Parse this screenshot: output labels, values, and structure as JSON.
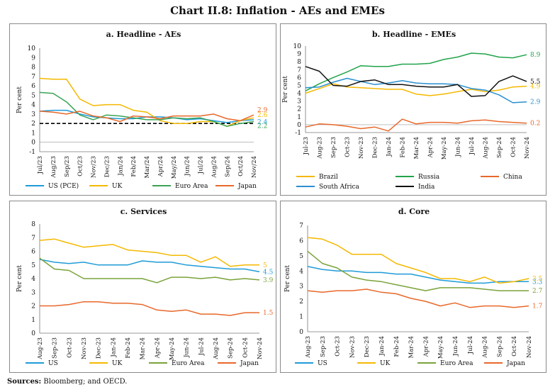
{
  "page": {
    "title": "Chart II.8: Inflation - AEs and EMEs",
    "sources_label": "Sources:",
    "sources_text": "Bloomberg; and OECD."
  },
  "colors": {
    "blue": "#1f9bd7",
    "yellow": "#f5b800",
    "green": "#3aa356",
    "orange": "#e8682a",
    "black": "#111111",
    "chartb_green": "#22a34a",
    "chartb_blue": "#2a8fd0",
    "chartc_green": "#7aa33a"
  },
  "chart_data": [
    {
      "id": "a",
      "type": "line",
      "title": "a. Headline - AEs",
      "ylabel": "Per cent",
      "ylim": [
        -1,
        10
      ],
      "yticks": [
        "-1",
        "0",
        "1",
        "2",
        "3",
        "4",
        "5",
        "6",
        "7",
        "8",
        "9",
        "10"
      ],
      "x": [
        "Jul/23",
        "Aug/23",
        "Sep/23",
        "Oct/23",
        "Nov/23",
        "Dec/23",
        "Jan/24",
        "Feb/24",
        "Mar/24",
        "Apr/24",
        "May/24",
        "Jun/24",
        "Jul/24",
        "Aug/24",
        "Sep/24",
        "Oct/24",
        "Nov/24"
      ],
      "reference_line": 2,
      "series": [
        {
          "name": "US (PCE)",
          "color": "blue",
          "values": [
            3.3,
            3.4,
            3.4,
            3.0,
            2.7,
            2.6,
            2.5,
            2.5,
            2.7,
            2.7,
            2.6,
            2.4,
            2.5,
            2.3,
            2.1,
            2.3,
            2.4
          ],
          "end_label": "2.4"
        },
        {
          "name": "UK",
          "color": "yellow",
          "values": [
            6.8,
            6.7,
            6.7,
            4.6,
            3.9,
            4.0,
            4.0,
            3.4,
            3.2,
            2.3,
            2.0,
            2.0,
            2.2,
            2.2,
            1.7,
            2.3,
            2.6
          ],
          "end_label": "2.6"
        },
        {
          "name": "Euro Area",
          "color": "green",
          "values": [
            5.3,
            5.2,
            4.3,
            2.9,
            2.4,
            2.9,
            2.8,
            2.6,
            2.4,
            2.4,
            2.6,
            2.5,
            2.6,
            2.2,
            1.7,
            2.0,
            2.2
          ],
          "end_label": "2.2"
        },
        {
          "name": "Japan",
          "color": "orange",
          "values": [
            3.3,
            3.2,
            3.0,
            3.3,
            2.8,
            2.6,
            2.2,
            2.8,
            2.7,
            2.5,
            2.8,
            2.8,
            2.8,
            3.0,
            2.5,
            2.3,
            2.9
          ],
          "end_label": "2.9"
        }
      ]
    },
    {
      "id": "b",
      "type": "line",
      "title": "b. Headline - EMEs",
      "ylabel": "Per cent",
      "ylim": [
        -1,
        10
      ],
      "yticks": [
        "-1",
        "0",
        "1",
        "2",
        "3",
        "4",
        "5",
        "6",
        "7",
        "8",
        "9",
        "10"
      ],
      "x": [
        "Jul-23",
        "Aug-23",
        "Sep-23",
        "Oct-23",
        "Nov-23",
        "Dec-23",
        "Jan-24",
        "Feb-24",
        "Mar-24",
        "Apr-24",
        "May-24",
        "Jun-24",
        "Jul-24",
        "Aug-24",
        "Sep-24",
        "Oct-24",
        "Nov-24"
      ],
      "series": [
        {
          "name": "Brazil",
          "color": "yellow",
          "values": [
            4.0,
            4.6,
            5.2,
            4.8,
            4.7,
            4.6,
            4.5,
            4.5,
            3.9,
            3.7,
            3.9,
            4.2,
            4.5,
            4.2,
            4.4,
            4.8,
            4.9
          ],
          "end_label": "4.9"
        },
        {
          "name": "Russia",
          "color": "chartb_green",
          "values": [
            4.3,
            5.2,
            6.0,
            6.7,
            7.5,
            7.4,
            7.4,
            7.7,
            7.7,
            7.8,
            8.3,
            8.6,
            9.1,
            9.0,
            8.6,
            8.5,
            8.9
          ],
          "end_label": "8.9"
        },
        {
          "name": "China",
          "color": "orange",
          "values": [
            -0.3,
            0.1,
            0.0,
            -0.2,
            -0.5,
            -0.3,
            -0.8,
            0.7,
            0.1,
            0.3,
            0.3,
            0.2,
            0.5,
            0.6,
            0.4,
            0.3,
            0.2
          ],
          "end_label": "0.2"
        },
        {
          "name": "South Africa",
          "color": "chartb_blue",
          "values": [
            4.7,
            4.8,
            5.4,
            5.9,
            5.5,
            5.1,
            5.3,
            5.6,
            5.3,
            5.2,
            5.2,
            5.1,
            4.6,
            4.4,
            3.8,
            2.8,
            2.9
          ],
          "end_label": "2.9"
        },
        {
          "name": "India",
          "color": "black",
          "values": [
            7.4,
            6.8,
            5.0,
            4.9,
            5.5,
            5.7,
            5.1,
            5.1,
            4.9,
            4.8,
            4.8,
            5.1,
            3.6,
            3.7,
            5.5,
            6.2,
            5.5
          ],
          "end_label": "5.5"
        }
      ]
    },
    {
      "id": "c",
      "type": "line",
      "title": "c. Services",
      "ylabel": "Per cent",
      "ylim": [
        0,
        8
      ],
      "yticks": [
        "0",
        "1",
        "2",
        "3",
        "4",
        "5",
        "6",
        "7",
        "8"
      ],
      "x": [
        "Aug-23",
        "Sep-23",
        "Oct-23",
        "Nov-23",
        "Dec-23",
        "Jan-24",
        "Feb-24",
        "Mar-24",
        "Apr-24",
        "May-24",
        "Jun-24",
        "Jul-24",
        "Aug-24",
        "Sep-24",
        "Oct-24",
        "Nov-24"
      ],
      "series": [
        {
          "name": "US",
          "color": "blue",
          "values": [
            5.4,
            5.2,
            5.1,
            5.2,
            5.0,
            5.0,
            5.0,
            5.3,
            5.2,
            5.2,
            5.0,
            4.9,
            4.8,
            4.7,
            4.7,
            4.5
          ],
          "end_label": "4.5"
        },
        {
          "name": "UK",
          "color": "yellow",
          "values": [
            6.8,
            6.9,
            6.6,
            6.3,
            6.4,
            6.5,
            6.1,
            6.0,
            5.9,
            5.7,
            5.7,
            5.2,
            5.6,
            4.9,
            5.0,
            5.0
          ],
          "end_label": "5"
        },
        {
          "name": "Euro Area",
          "color": "chartc_green",
          "values": [
            5.5,
            4.7,
            4.6,
            4.0,
            4.0,
            4.0,
            4.0,
            4.0,
            3.7,
            4.1,
            4.1,
            4.0,
            4.1,
            3.9,
            4.0,
            3.9
          ],
          "end_label": "3.9"
        },
        {
          "name": "Japan",
          "color": "orange",
          "values": [
            2.0,
            2.0,
            2.1,
            2.3,
            2.3,
            2.2,
            2.2,
            2.1,
            1.7,
            1.6,
            1.7,
            1.4,
            1.4,
            1.3,
            1.5,
            1.5
          ],
          "end_label": "1.5"
        }
      ]
    },
    {
      "id": "d",
      "type": "line",
      "title": "d. Core",
      "ylabel": "Per cent",
      "ylim": [
        0,
        7
      ],
      "yticks": [
        "0",
        "1",
        "2",
        "3",
        "4",
        "5",
        "6",
        "7"
      ],
      "x": [
        "Aug-23",
        "Sep-23",
        "Oct-23",
        "Nov-23",
        "Dec-23",
        "Jan-24",
        "Feb-24",
        "Mar-24",
        "Apr-24",
        "May-24",
        "Jun-24",
        "Jul-24",
        "Aug-24",
        "Sep-24",
        "Oct-24",
        "Nov-24"
      ],
      "series": [
        {
          "name": "US",
          "color": "blue",
          "values": [
            4.3,
            4.1,
            4.0,
            4.0,
            3.9,
            3.9,
            3.8,
            3.8,
            3.6,
            3.4,
            3.3,
            3.2,
            3.2,
            3.3,
            3.3,
            3.3
          ],
          "end_label": "3.3"
        },
        {
          "name": "UK",
          "color": "yellow",
          "values": [
            6.2,
            6.1,
            5.7,
            5.1,
            5.1,
            5.1,
            4.5,
            4.2,
            3.9,
            3.5,
            3.5,
            3.3,
            3.6,
            3.2,
            3.3,
            3.5
          ],
          "end_label": "3.5"
        },
        {
          "name": "Euro Area",
          "color": "chartc_green",
          "values": [
            5.3,
            4.5,
            4.2,
            3.6,
            3.4,
            3.3,
            3.1,
            2.9,
            2.7,
            2.9,
            2.9,
            2.9,
            2.8,
            2.7,
            2.7,
            2.7
          ],
          "end_label": "2.7"
        },
        {
          "name": "Japan",
          "color": "orange",
          "values": [
            2.7,
            2.6,
            2.7,
            2.7,
            2.8,
            2.6,
            2.5,
            2.2,
            2.0,
            1.7,
            1.9,
            1.6,
            1.7,
            1.7,
            1.6,
            1.7
          ],
          "end_label": "1.7"
        }
      ]
    }
  ]
}
